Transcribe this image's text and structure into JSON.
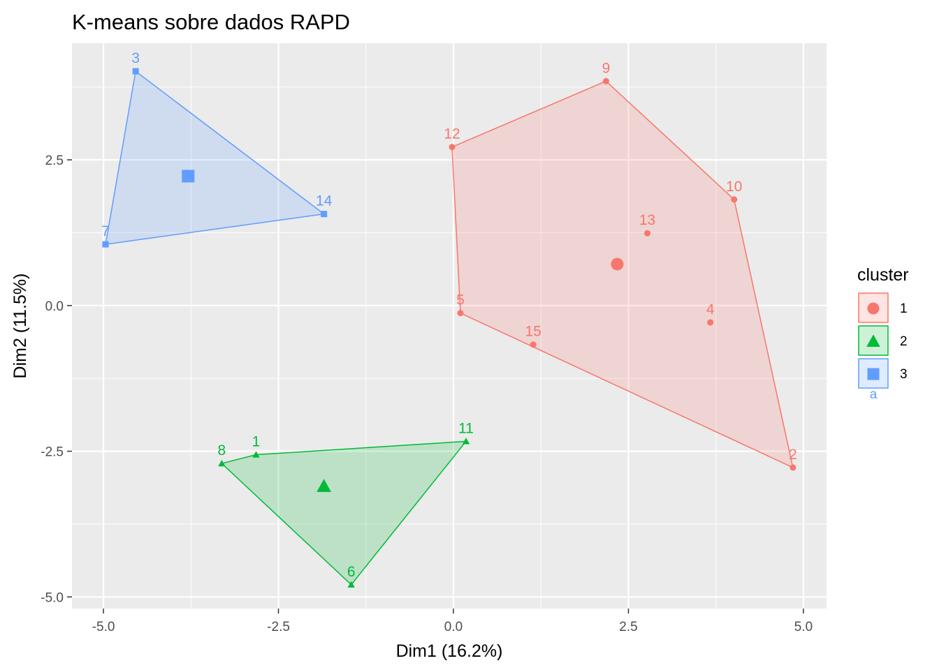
{
  "chart_data": {
    "type": "scatter",
    "title": "K-means sobre dados RAPD",
    "xlabel": "Dim1 (16.2%)",
    "ylabel": "Dim2 (11.5%)",
    "xlim": [
      -5.45,
      5.33
    ],
    "ylim": [
      -5.2,
      4.5
    ],
    "xticks": [
      -5.0,
      -2.5,
      0.0,
      2.5,
      5.0
    ],
    "xtick_labels": [
      "-5.0",
      "-2.5",
      "0.0",
      "2.5",
      "5.0"
    ],
    "yticks": [
      -5.0,
      -2.5,
      0.0,
      2.5
    ],
    "ytick_labels": [
      "-5.0",
      "-2.5",
      "0.0",
      "2.5"
    ],
    "grid": true,
    "legend": {
      "title": "cluster",
      "position": "right",
      "stray_label": "a",
      "entries": [
        {
          "label": "1",
          "shape": "circle"
        },
        {
          "label": "2",
          "shape": "triangle"
        },
        {
          "label": "3",
          "shape": "square"
        }
      ]
    },
    "series": [
      {
        "name": "1",
        "color": "#F8766D",
        "shape": "circle",
        "points": [
          {
            "label": "2",
            "x": 4.85,
            "y": -2.78
          },
          {
            "label": "4",
            "x": 3.67,
            "y": -0.29
          },
          {
            "label": "5",
            "x": 0.1,
            "y": -0.13
          },
          {
            "label": "9",
            "x": 2.18,
            "y": 3.85
          },
          {
            "label": "10",
            "x": 4.01,
            "y": 1.82
          },
          {
            "label": "12",
            "x": -0.02,
            "y": 2.72
          },
          {
            "label": "13",
            "x": 2.77,
            "y": 1.24
          },
          {
            "label": "15",
            "x": 1.14,
            "y": -0.67
          }
        ],
        "hull": [
          "12",
          "9",
          "10",
          "2",
          "5"
        ],
        "center": {
          "x": 2.34,
          "y": 0.71
        }
      },
      {
        "name": "2",
        "color": "#00BA38",
        "shape": "triangle",
        "points": [
          {
            "label": "1",
            "x": -2.82,
            "y": -2.56
          },
          {
            "label": "6",
            "x": -1.46,
            "y": -4.79
          },
          {
            "label": "8",
            "x": -3.31,
            "y": -2.71
          },
          {
            "label": "11",
            "x": 0.18,
            "y": -2.33
          }
        ],
        "hull": [
          "8",
          "1",
          "11",
          "6"
        ],
        "center": {
          "x": -1.85,
          "y": -3.1
        }
      },
      {
        "name": "3",
        "color": "#619CFF",
        "shape": "square",
        "points": [
          {
            "label": "3",
            "x": -4.54,
            "y": 4.02
          },
          {
            "label": "7",
            "x": -4.97,
            "y": 1.05
          },
          {
            "label": "14",
            "x": -1.85,
            "y": 1.57
          }
        ],
        "hull": [
          "3",
          "14",
          "7"
        ],
        "center": {
          "x": -3.79,
          "y": 2.22
        }
      }
    ]
  }
}
